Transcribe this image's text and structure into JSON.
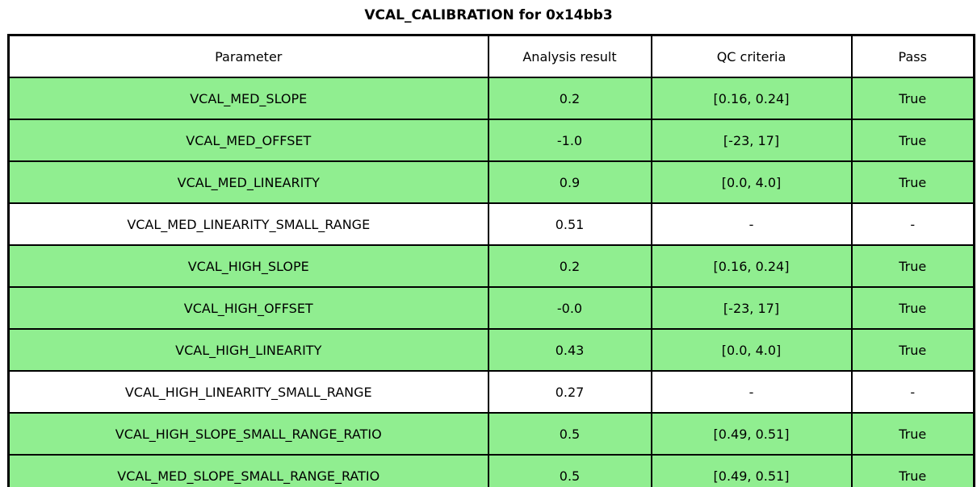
{
  "title": "VCAL_CALIBRATION for 0x14bb3",
  "table": {
    "columns": [
      "Parameter",
      "Analysis result",
      "QC criteria",
      "Pass"
    ],
    "rows": [
      {
        "parameter": "VCAL_MED_SLOPE",
        "result": "0.2",
        "qc": "[0.16, 0.24]",
        "pass": "True",
        "highlight": true
      },
      {
        "parameter": "VCAL_MED_OFFSET",
        "result": "-1.0",
        "qc": "[-23, 17]",
        "pass": "True",
        "highlight": true
      },
      {
        "parameter": "VCAL_MED_LINEARITY",
        "result": "0.9",
        "qc": "[0.0, 4.0]",
        "pass": "True",
        "highlight": true
      },
      {
        "parameter": "VCAL_MED_LINEARITY_SMALL_RANGE",
        "result": "0.51",
        "qc": "-",
        "pass": "-",
        "highlight": false
      },
      {
        "parameter": "VCAL_HIGH_SLOPE",
        "result": "0.2",
        "qc": "[0.16, 0.24]",
        "pass": "True",
        "highlight": true
      },
      {
        "parameter": "VCAL_HIGH_OFFSET",
        "result": "-0.0",
        "qc": "[-23, 17]",
        "pass": "True",
        "highlight": true
      },
      {
        "parameter": "VCAL_HIGH_LINEARITY",
        "result": "0.43",
        "qc": "[0.0, 4.0]",
        "pass": "True",
        "highlight": true
      },
      {
        "parameter": "VCAL_HIGH_LINEARITY_SMALL_RANGE",
        "result": "0.27",
        "qc": "-",
        "pass": "-",
        "highlight": false
      },
      {
        "parameter": "VCAL_HIGH_SLOPE_SMALL_RANGE_RATIO",
        "result": "0.5",
        "qc": "[0.49, 0.51]",
        "pass": "True",
        "highlight": true
      },
      {
        "parameter": "VCAL_MED_SLOPE_SMALL_RANGE_RATIO",
        "result": "0.5",
        "qc": "[0.49, 0.51]",
        "pass": "True",
        "highlight": true
      }
    ]
  },
  "colors": {
    "pass_row_bg": "#90ee90",
    "neutral_row_bg": "#ffffff",
    "border": "#000000",
    "text": "#000000"
  },
  "chart_data": {
    "type": "table",
    "title": "VCAL_CALIBRATION for 0x14bb3",
    "columns": [
      "Parameter",
      "Analysis result",
      "QC criteria",
      "Pass"
    ],
    "rows": [
      [
        "VCAL_MED_SLOPE",
        "0.2",
        "[0.16, 0.24]",
        "True"
      ],
      [
        "VCAL_MED_OFFSET",
        "-1.0",
        "[-23, 17]",
        "True"
      ],
      [
        "VCAL_MED_LINEARITY",
        "0.9",
        "[0.0, 4.0]",
        "True"
      ],
      [
        "VCAL_MED_LINEARITY_SMALL_RANGE",
        "0.51",
        "-",
        "-"
      ],
      [
        "VCAL_HIGH_SLOPE",
        "0.2",
        "[0.16, 0.24]",
        "True"
      ],
      [
        "VCAL_HIGH_OFFSET",
        "-0.0",
        "[-23, 17]",
        "True"
      ],
      [
        "VCAL_HIGH_LINEARITY",
        "0.43",
        "[0.0, 4.0]",
        "True"
      ],
      [
        "VCAL_HIGH_LINEARITY_SMALL_RANGE",
        "0.27",
        "-",
        "-"
      ],
      [
        "VCAL_HIGH_SLOPE_SMALL_RANGE_RATIO",
        "0.5",
        "[0.49, 0.51]",
        "True"
      ],
      [
        "VCAL_MED_SLOPE_SMALL_RANGE_RATIO",
        "0.5",
        "[0.49, 0.51]",
        "True"
      ]
    ],
    "row_highlight_color": "#90ee90",
    "highlighted_rows": [
      0,
      1,
      2,
      4,
      5,
      6,
      8,
      9
    ],
    "legend_position": "none",
    "grid": true
  }
}
